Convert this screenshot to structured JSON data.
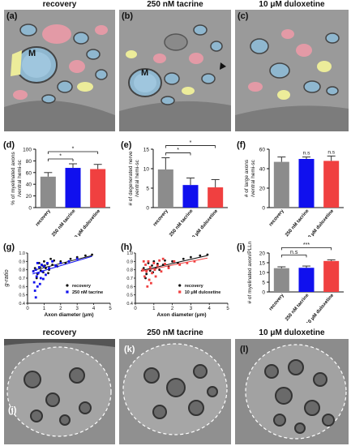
{
  "headers_top": [
    "recovery",
    "250 nM tacrine",
    "10 μM duloxetine"
  ],
  "headers_bottom": [
    "recovery",
    "250 nM tacrine",
    "10 μM duloxetine"
  ],
  "em_top": [
    {
      "panel": "(a)",
      "marker": "M"
    },
    {
      "panel": "(b)",
      "marker": "M"
    },
    {
      "panel": "(c)",
      "marker": ""
    }
  ],
  "em_bottom": [
    {
      "panel": "(j)"
    },
    {
      "panel": "(k)"
    },
    {
      "panel": "(l)"
    }
  ],
  "colors": {
    "recovery": "#8c8c8c",
    "tacrine": "#1010ee",
    "duloxetine": "#f04040",
    "myelin_blue": "#8fb7cf",
    "axon_red": "#e39aa6",
    "yellow": "#ecec9a"
  },
  "chart_data": [
    {
      "panel": "(d)",
      "type": "bar",
      "categories": [
        "recovery",
        "250 nM tacrine",
        "10 μM duloxetine"
      ],
      "values": [
        53,
        68,
        66
      ],
      "errors": [
        7,
        7,
        8
      ],
      "ylabel": "% of myelinated axons /ventral hemi-sc",
      "ylim": [
        0,
        100
      ],
      "yticks": [
        0,
        20,
        40,
        60,
        80,
        100
      ],
      "sig": [
        {
          "from": 0,
          "to": 1,
          "label": "*"
        },
        {
          "from": 0,
          "to": 2,
          "label": "*"
        }
      ]
    },
    {
      "panel": "(e)",
      "type": "bar",
      "categories": [
        "recovery",
        "250 nM tacrine",
        "10 μM duloxetine"
      ],
      "values": [
        9.8,
        5.8,
        5.2
      ],
      "errors": [
        3.0,
        1.8,
        2.0
      ],
      "ylabel": "# of degenerated nerve /ventral hemi-sc",
      "ylim": [
        0,
        15
      ],
      "yticks": [
        0,
        5,
        10,
        15
      ],
      "sig": [
        {
          "from": 0,
          "to": 1,
          "label": "*"
        },
        {
          "from": 0,
          "to": 2,
          "label": "*"
        }
      ]
    },
    {
      "panel": "(f)",
      "type": "bar",
      "categories": [
        "recovery",
        "250 nM tacrine",
        "10 μM duloxetine"
      ],
      "values": [
        47,
        50,
        48
      ],
      "errors": [
        5,
        2,
        5
      ],
      "ylabel": "# of large axons /ventral hemi-sc",
      "ylim": [
        0,
        60
      ],
      "yticks": [
        0,
        20,
        40,
        60
      ],
      "above": [
        "",
        "n.s",
        "n.s"
      ]
    },
    {
      "panel": "(g)",
      "type": "scatter",
      "xlabel": "Axon diameter (μm)",
      "ylabel": "g-ratio",
      "xlim": [
        0,
        5
      ],
      "ylim": [
        0.4,
        1.0
      ],
      "xticks": [
        0,
        1,
        2,
        3,
        4,
        5
      ],
      "yticks": [
        0.4,
        0.5,
        0.6,
        0.7,
        0.8,
        0.9,
        1.0
      ],
      "series": [
        {
          "name": "recovery",
          "fit": [
            [
              0.3,
              0.79
            ],
            [
              3.9,
              0.97
            ]
          ],
          "points": [
            [
              0.45,
              0.82
            ],
            [
              0.6,
              0.75
            ],
            [
              0.7,
              0.88
            ],
            [
              0.8,
              0.79
            ],
            [
              0.9,
              0.85
            ],
            [
              1.0,
              0.9
            ],
            [
              1.1,
              0.82
            ],
            [
              1.2,
              0.87
            ],
            [
              1.3,
              0.8
            ],
            [
              0.55,
              0.7
            ],
            [
              1.5,
              0.86
            ],
            [
              1.6,
              0.91
            ],
            [
              1.8,
              0.84
            ],
            [
              2.0,
              0.9
            ],
            [
              2.3,
              0.88
            ],
            [
              2.6,
              0.93
            ],
            [
              3.0,
              0.95
            ],
            [
              3.5,
              0.97
            ],
            [
              3.9,
              0.98
            ],
            [
              0.95,
              0.77
            ],
            [
              1.4,
              0.93
            ],
            [
              0.75,
              0.83
            ],
            [
              1.05,
              0.85
            ],
            [
              1.25,
              0.76
            ]
          ]
        },
        {
          "name": "250 nM tacrine",
          "fit": [
            [
              0.3,
              0.75
            ],
            [
              3.9,
              0.96
            ]
          ],
          "points": [
            [
              0.35,
              0.78
            ],
            [
              0.4,
              0.65
            ],
            [
              0.5,
              0.8
            ],
            [
              0.55,
              0.72
            ],
            [
              0.6,
              0.88
            ],
            [
              0.65,
              0.76
            ],
            [
              0.7,
              0.83
            ],
            [
              0.8,
              0.7
            ],
            [
              0.85,
              0.86
            ],
            [
              0.9,
              0.78
            ],
            [
              1.0,
              0.84
            ],
            [
              1.1,
              0.74
            ],
            [
              1.2,
              0.88
            ],
            [
              0.45,
              0.55
            ],
            [
              0.5,
              0.47
            ],
            [
              0.75,
              0.63
            ],
            [
              1.3,
              0.82
            ],
            [
              1.5,
              0.9
            ],
            [
              1.7,
              0.85
            ],
            [
              2.0,
              0.88
            ],
            [
              2.5,
              0.9
            ],
            [
              3.0,
              0.93
            ],
            [
              0.6,
              0.6
            ],
            [
              0.95,
              0.69
            ]
          ]
        }
      ]
    },
    {
      "panel": "(h)",
      "type": "scatter",
      "xlabel": "Axon diameter (μm)",
      "ylabel": "",
      "xlim": [
        0,
        5
      ],
      "ylim": [
        0.4,
        1.0
      ],
      "xticks": [
        0,
        1,
        2,
        3,
        4,
        5
      ],
      "yticks": [
        0.4,
        0.5,
        0.6,
        0.7,
        0.8,
        0.9,
        1.0
      ],
      "series": [
        {
          "name": "recovery",
          "fit": [
            [
              0.3,
              0.79
            ],
            [
              3.9,
              0.97
            ]
          ],
          "points": [
            [
              0.45,
              0.82
            ],
            [
              0.6,
              0.75
            ],
            [
              0.7,
              0.88
            ],
            [
              0.8,
              0.79
            ],
            [
              0.9,
              0.85
            ],
            [
              1.0,
              0.9
            ],
            [
              1.1,
              0.82
            ],
            [
              1.2,
              0.87
            ],
            [
              1.3,
              0.8
            ],
            [
              0.55,
              0.7
            ],
            [
              1.5,
              0.86
            ],
            [
              1.6,
              0.91
            ],
            [
              1.8,
              0.84
            ],
            [
              2.0,
              0.9
            ],
            [
              2.3,
              0.88
            ],
            [
              2.6,
              0.93
            ],
            [
              3.0,
              0.95
            ],
            [
              3.5,
              0.97
            ],
            [
              3.9,
              0.98
            ],
            [
              0.95,
              0.77
            ]
          ]
        },
        {
          "name": "10 μM duloxetine",
          "fit": [
            [
              0.3,
              0.78
            ],
            [
              3.9,
              0.94
            ]
          ],
          "points": [
            [
              0.4,
              0.8
            ],
            [
              0.5,
              0.72
            ],
            [
              0.55,
              0.86
            ],
            [
              0.6,
              0.78
            ],
            [
              0.7,
              0.9
            ],
            [
              0.75,
              0.68
            ],
            [
              0.8,
              0.83
            ],
            [
              0.9,
              0.76
            ],
            [
              1.0,
              0.88
            ],
            [
              1.05,
              0.8
            ],
            [
              1.1,
              0.72
            ],
            [
              1.2,
              0.85
            ],
            [
              1.3,
              0.91
            ],
            [
              1.4,
              0.78
            ],
            [
              1.6,
              0.87
            ],
            [
              1.8,
              0.82
            ],
            [
              2.1,
              0.9
            ],
            [
              2.4,
              0.86
            ],
            [
              2.8,
              0.88
            ],
            [
              3.2,
              0.9
            ],
            [
              0.65,
              0.6
            ],
            [
              0.85,
              0.64
            ],
            [
              1.5,
              0.93
            ],
            [
              0.45,
              0.9
            ]
          ]
        }
      ]
    },
    {
      "panel": "(i)",
      "type": "bar",
      "categories": [
        "recovery",
        "250 nM tacrine",
        "10 μM duloxetine"
      ],
      "values": [
        12.2,
        12.4,
        15.9
      ],
      "errors": [
        0.7,
        0.9,
        0.6
      ],
      "ylabel": "# of myelinated axon/PLLn",
      "ylim": [
        0,
        20
      ],
      "yticks": [
        0,
        5,
        10,
        15,
        20
      ],
      "sig": [
        {
          "from": 0,
          "to": 1,
          "label": "n.s"
        },
        {
          "from": 0,
          "to": 2,
          "label": "***"
        }
      ]
    }
  ]
}
